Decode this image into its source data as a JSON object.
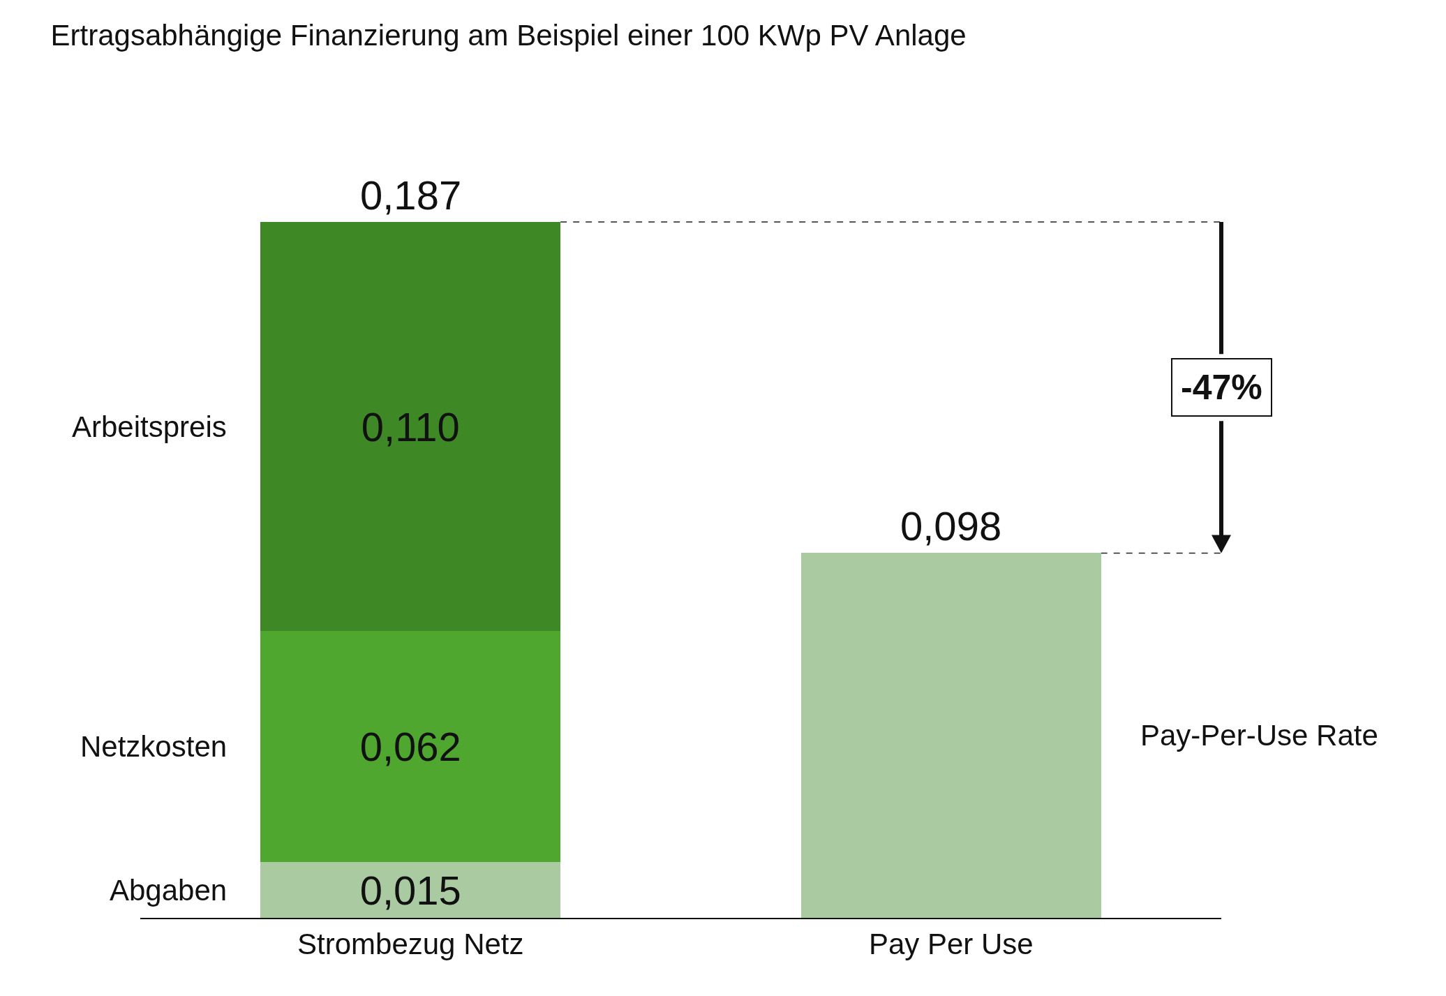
{
  "chart_data": {
    "type": "bar",
    "title": "Ertragsabhängige Finanzierung am Beispiel einer 100 KWp PV Anlage",
    "categories": [
      "Strombezug Netz",
      "Pay Per Use"
    ],
    "stacked": true,
    "series": [
      {
        "name": "Abgaben",
        "color": "#aacba2",
        "values": [
          0.015,
          null
        ],
        "value_labels": [
          "0,015",
          null
        ]
      },
      {
        "name": "Netzkosten",
        "color": "#4fa72f",
        "values": [
          0.062,
          null
        ],
        "value_labels": [
          "0,062",
          null
        ]
      },
      {
        "name": "Arbeitspreis",
        "color": "#3f8826",
        "values": [
          0.11,
          null
        ],
        "value_labels": [
          "0,110",
          null
        ]
      },
      {
        "name": "Pay-Per-Use Rate",
        "color": "#aacba2",
        "values": [
          null,
          0.098
        ]
      }
    ],
    "totals": [
      "0,187",
      "0,098"
    ],
    "ref_lines": [
      {
        "axis": "y",
        "value": 0.187,
        "line_style": "dashed"
      },
      {
        "axis": "y",
        "value": 0.098,
        "line_style": "dashed"
      }
    ],
    "annotations": [
      "-47%"
    ]
  }
}
